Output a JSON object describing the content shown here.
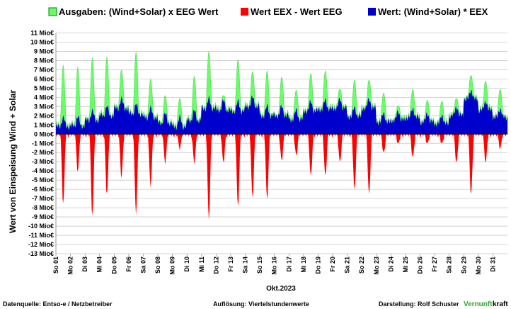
{
  "chart_data": {
    "type": "area",
    "ylabel": "Wert von Einspeisung Wind + Solar",
    "xlabel": "Okt.2023",
    "ylim": [
      -13,
      11
    ],
    "yticks": [
      "11 Mio€",
      "10 Mio€",
      "9 Mio€",
      "8 Mio€",
      "7 Mio€",
      "6 Mio€",
      "5 Mio€",
      "4 Mio€",
      "3 Mio€",
      "2 Mio€",
      "1 Mio€",
      "0 Mio€",
      "-1 Mio€",
      "-2 Mio€",
      "-3 Mio€",
      "-4 Mio€",
      "-5 Mio€",
      "-6 Mio€",
      "-7 Mio€",
      "-8 Mio€",
      "-9 Mio€",
      "-10 Mio€",
      "-11 Mio€",
      "-12 Mio€",
      "-13 Mio€"
    ],
    "ytick_values": [
      11,
      10,
      9,
      8,
      7,
      6,
      5,
      4,
      3,
      2,
      1,
      0,
      -1,
      -2,
      -3,
      -4,
      -5,
      -6,
      -7,
      -8,
      -9,
      -10,
      -11,
      -12,
      -13
    ],
    "categories": [
      "So 01",
      "Mo 02",
      "Di 03",
      "Mi 04",
      "Do 05",
      "Fr 06",
      "Sa 07",
      "So 08",
      "Mo 09",
      "Di 10",
      "Mi 11",
      "Do 12",
      "Fr 13",
      "Sa 14",
      "So 15",
      "Mo 16",
      "Di 17",
      "Mi 18",
      "Do 19",
      "Fr 20",
      "Sa 21",
      "So 22",
      "Mo 23",
      "Di 24",
      "Mi 25",
      "Do 26",
      "Fr 27",
      "Sa 28",
      "So 29",
      "Mo 30",
      "Di 31"
    ],
    "legend_position": "top",
    "grid": "horizontal",
    "series": [
      {
        "name": "Ausgaben: (Wind+Solar) x EEG Wert",
        "color": "#66ff66",
        "peaks": [
          7.5,
          7.3,
          8.3,
          8.4,
          7.0,
          8.9,
          6.0,
          4.2,
          3.9,
          6.3,
          9.0,
          4.2,
          8.1,
          6.8,
          6.9,
          6.2,
          4.8,
          6.6,
          6.9,
          4.9,
          5.9,
          5.9,
          4.5,
          3.1,
          4.9,
          3.7,
          3.6,
          3.9,
          6.4,
          5.8,
          4.9
        ]
      },
      {
        "name": "Wert EEX - Wert EEG",
        "color": "#ff0000",
        "troughs": [
          -7.5,
          -4.0,
          -8.8,
          -6.5,
          -4.5,
          -8.5,
          -5.5,
          -3.0,
          -1.5,
          -3.0,
          -9.0,
          -3.0,
          -7.8,
          -6.8,
          -7.0,
          -2.8,
          -2.2,
          -4.5,
          -4.5,
          -3.0,
          -6.0,
          -6.5,
          -2.0,
          -1.0,
          -2.5,
          -1.0,
          -1.0,
          -3.0,
          -6.5,
          -3.0,
          -1.5
        ]
      },
      {
        "name": "Wert: (Wind+Solar) * EEX",
        "color": "#0000cc",
        "base": [
          0.8,
          0.9,
          1.5,
          2.0,
          2.8,
          2.2,
          1.8,
          1.2,
          0.8,
          1.5,
          2.8,
          2.6,
          2.5,
          3.0,
          2.0,
          2.0,
          1.6,
          2.5,
          2.7,
          2.8,
          1.9,
          2.8,
          1.3,
          1.5,
          1.8,
          1.3,
          1.1,
          2.0,
          3.8,
          2.6,
          1.8
        ]
      }
    ]
  },
  "footer": {
    "source": "Datenquelle:  Entso-e  / Netzbetreiber",
    "resolution": "Auflösung: Viertelstundenwerte",
    "credit": "Darstellung:  Rolf Schuster",
    "brand_a": "Vernunft",
    "brand_b": "kraft"
  }
}
